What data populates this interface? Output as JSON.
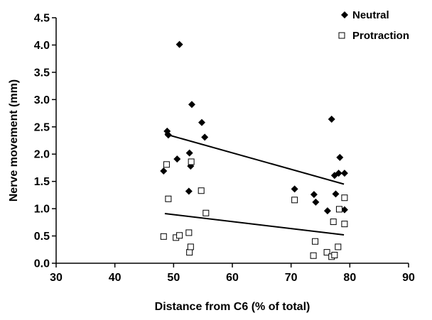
{
  "chart_data": {
    "type": "scatter",
    "title": "",
    "xlabel": "Distance from C6 (% of total)",
    "ylabel": "Nerve movement (mm)",
    "xlim": [
      30,
      90
    ],
    "ylim": [
      0,
      4.5
    ],
    "x_ticks": [
      "30",
      "40",
      "50",
      "60",
      "70",
      "80",
      "90"
    ],
    "y_ticks": [
      "0.0",
      "0.5",
      "1.0",
      "1.5",
      "2.0",
      "2.5",
      "3.0",
      "3.5",
      "4.0",
      "4.5"
    ],
    "legend_position": "top-right",
    "grid": false,
    "series": [
      {
        "name": "Neutral",
        "marker": "filled-diamond",
        "color": "#000000",
        "points": [
          [
            48.3,
            1.69
          ],
          [
            48.9,
            2.42
          ],
          [
            49.1,
            2.35
          ],
          [
            50.6,
            1.91
          ],
          [
            51.0,
            4.01
          ],
          [
            52.7,
            2.02
          ],
          [
            52.6,
            1.32
          ],
          [
            52.9,
            1.78
          ],
          [
            53.1,
            2.91
          ],
          [
            54.8,
            2.58
          ],
          [
            55.3,
            2.31
          ],
          [
            70.6,
            1.36
          ],
          [
            73.9,
            1.26
          ],
          [
            74.2,
            1.12
          ],
          [
            76.2,
            0.96
          ],
          [
            76.9,
            2.64
          ],
          [
            77.4,
            1.61
          ],
          [
            77.6,
            1.27
          ],
          [
            78.1,
            1.65
          ],
          [
            78.3,
            1.94
          ],
          [
            79.1,
            1.65
          ],
          [
            79.1,
            0.98
          ]
        ],
        "trendline": {
          "x": [
            48.5,
            79.0
          ],
          "y": [
            2.37,
            1.45
          ]
        }
      },
      {
        "name": "Protraction",
        "marker": "open-square",
        "color": "#000000",
        "points": [
          [
            48.3,
            0.49
          ],
          [
            48.8,
            1.81
          ],
          [
            49.1,
            1.18
          ],
          [
            50.4,
            0.47
          ],
          [
            51.0,
            0.51
          ],
          [
            52.6,
            0.56
          ],
          [
            52.7,
            0.2
          ],
          [
            52.9,
            0.3
          ],
          [
            53.0,
            1.86
          ],
          [
            54.7,
            1.33
          ],
          [
            55.5,
            0.92
          ],
          [
            70.6,
            1.16
          ],
          [
            73.8,
            0.14
          ],
          [
            74.1,
            0.4
          ],
          [
            76.1,
            0.2
          ],
          [
            76.9,
            0.12
          ],
          [
            77.4,
            0.15
          ],
          [
            77.2,
            0.76
          ],
          [
            78.0,
            0.3
          ],
          [
            78.2,
            0.99
          ],
          [
            79.1,
            1.2
          ],
          [
            79.1,
            0.72
          ]
        ],
        "trendline": {
          "x": [
            48.5,
            79.0
          ],
          "y": [
            0.91,
            0.52
          ]
        }
      }
    ]
  }
}
